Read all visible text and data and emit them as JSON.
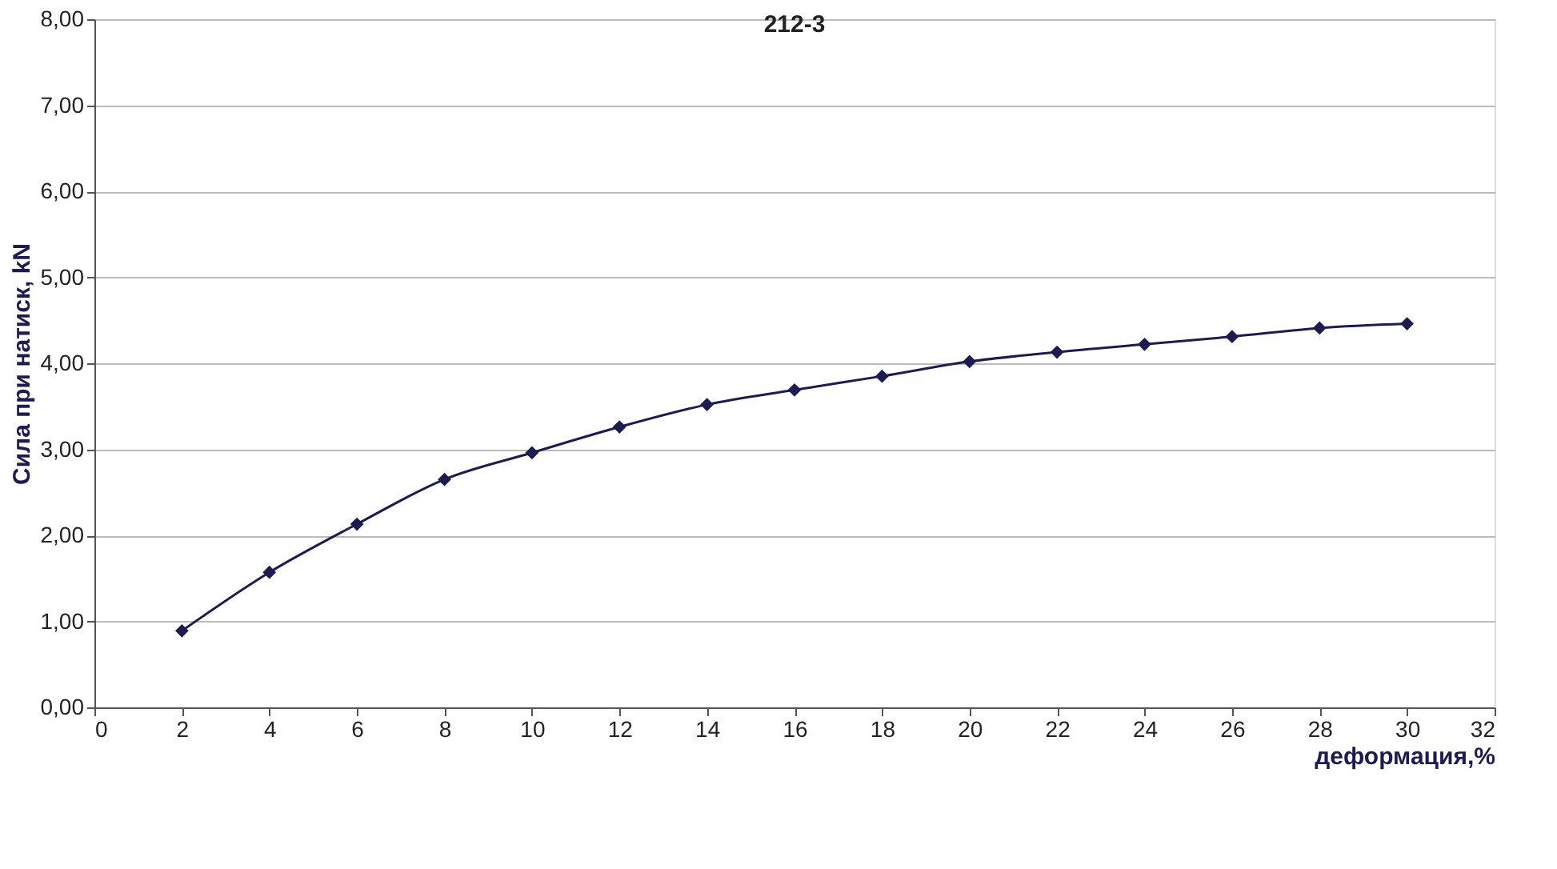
{
  "chart_data": {
    "type": "line",
    "title": "212-3",
    "xlabel": "деформация,%",
    "ylabel": "Сила при натиск, kN",
    "x": [
      2,
      4,
      6,
      8,
      10,
      12,
      14,
      16,
      18,
      20,
      22,
      24,
      26,
      28,
      30
    ],
    "series": [
      {
        "color": "#1c1c50",
        "values": [
          0.89,
          1.57,
          2.13,
          2.65,
          2.96,
          3.26,
          3.52,
          3.69,
          3.85,
          4.02,
          4.13,
          4.22,
          4.31,
          4.41,
          4.46
        ]
      }
    ],
    "xlim": [
      0,
      32
    ],
    "xticks": [
      0,
      2,
      4,
      6,
      8,
      10,
      12,
      14,
      16,
      18,
      20,
      22,
      24,
      26,
      28,
      30,
      32
    ],
    "ylim": [
      0,
      8
    ],
    "yticks": [
      {
        "value": 0,
        "label": "0,00"
      },
      {
        "value": 1,
        "label": "1,00"
      },
      {
        "value": 2,
        "label": "2,00"
      },
      {
        "value": 3,
        "label": "3,00"
      },
      {
        "value": 4,
        "label": "4,00"
      },
      {
        "value": 5,
        "label": "5,00"
      },
      {
        "value": 6,
        "label": "6,00"
      },
      {
        "value": 7,
        "label": "7,00"
      },
      {
        "value": 8,
        "label": "8,00"
      }
    ],
    "grid": "y",
    "marker": "diamond",
    "line_style": "solid"
  }
}
